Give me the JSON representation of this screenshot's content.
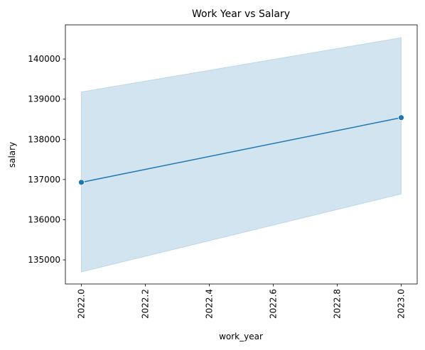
{
  "chart_data": {
    "type": "line",
    "title": "Work Year vs Salary",
    "xlabel": "work_year",
    "ylabel": "salary",
    "x": [
      2022.0,
      2023.0
    ],
    "series": [
      {
        "values": [
          136930,
          138540
        ],
        "ci_lower": [
          134700,
          136640
        ],
        "ci_upper": [
          139180,
          140530
        ],
        "color": "#1f77b4"
      }
    ],
    "xlim": [
      2021.95,
      2023.05
    ],
    "ylim": [
      134400,
      140850
    ],
    "x_ticks": [
      "2022.0",
      "2022.2",
      "2022.4",
      "2022.6",
      "2022.8",
      "2023.0"
    ],
    "y_ticks": [
      "135000",
      "136000",
      "137000",
      "138000",
      "139000",
      "140000"
    ],
    "x_tick_rotation": "vertical",
    "markers": true,
    "grid": false,
    "band_color": "#1f77b4"
  }
}
